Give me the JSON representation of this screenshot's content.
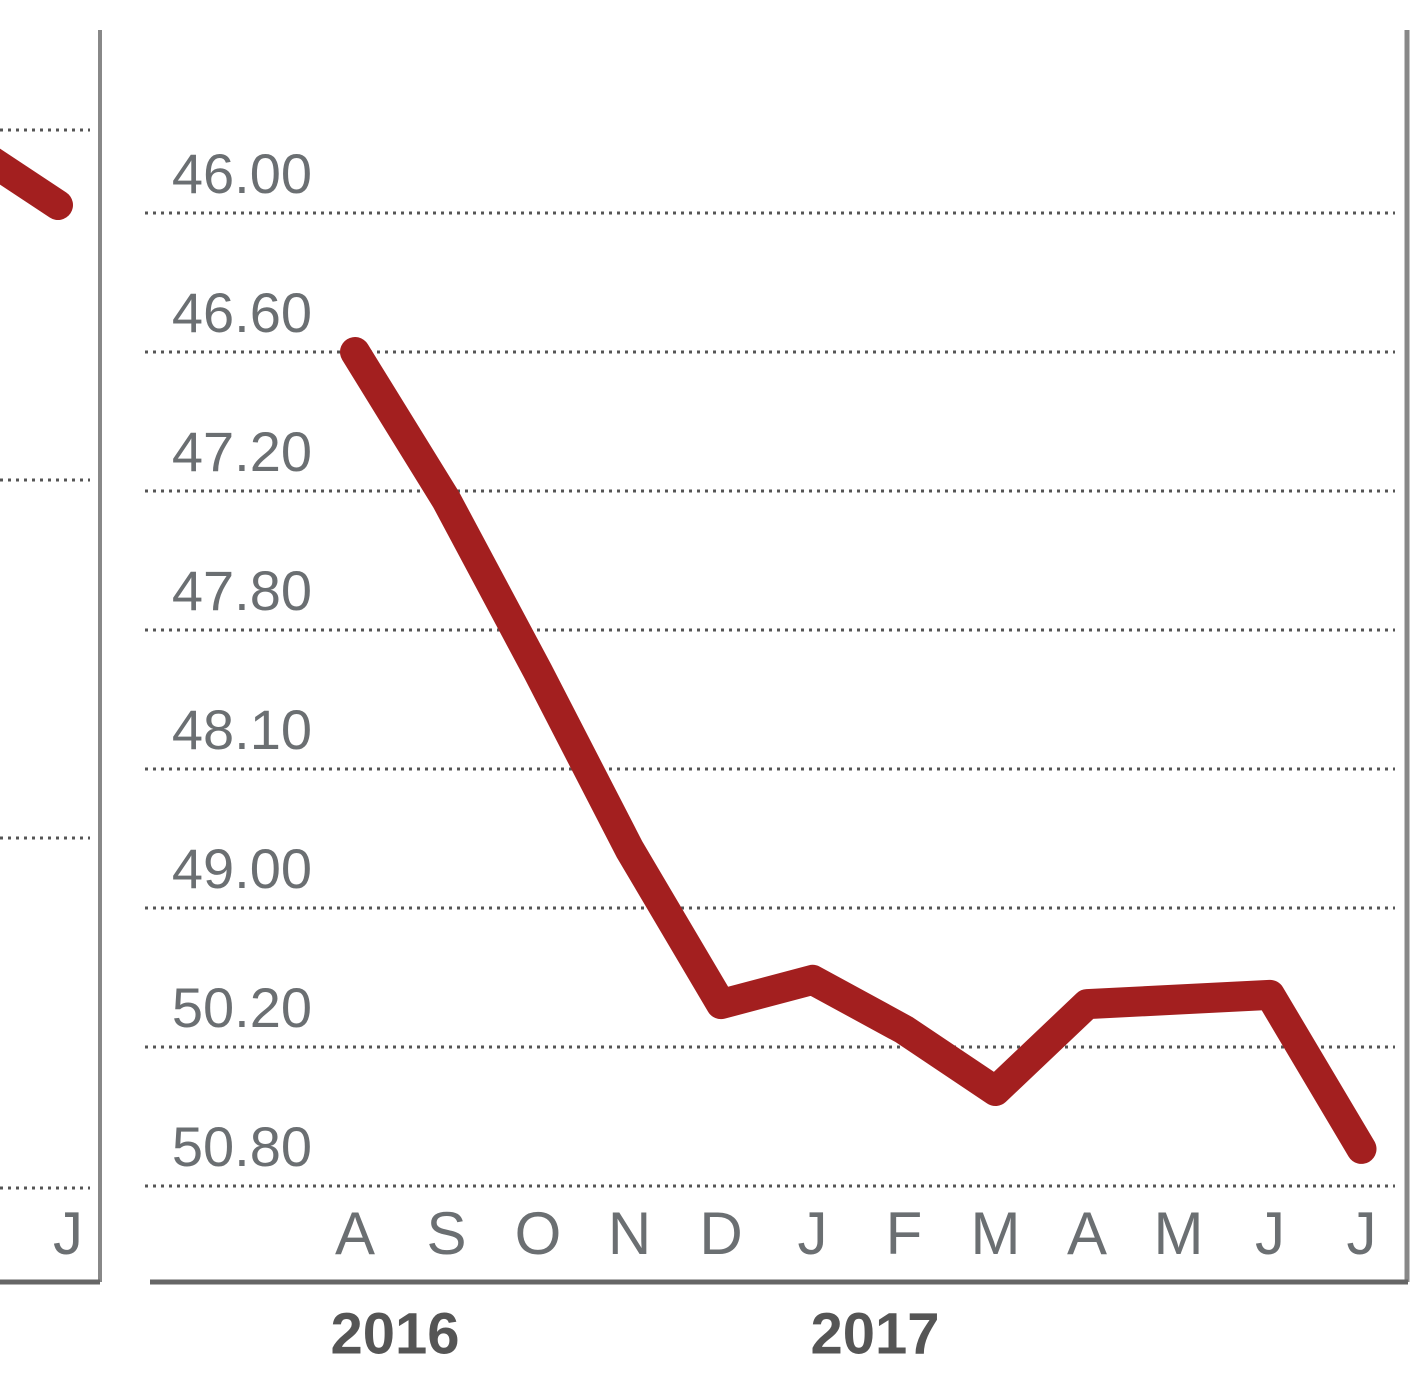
{
  "chart_data": {
    "type": "line",
    "categories": [
      "A",
      "S",
      "O",
      "N",
      "D",
      "J",
      "F",
      "M",
      "A",
      "M",
      "J",
      "J"
    ],
    "years": [
      "2016",
      "2017"
    ],
    "series": [
      {
        "color": "#a31f1f",
        "values": [
          46.6,
          47.24,
          47.89,
          48.62,
          49.83,
          49.62,
          50.05,
          50.39,
          49.83,
          49.79,
          49.75,
          50.64
        ]
      }
    ],
    "y_inverted": true,
    "ylim": [
      46,
      50.8
    ],
    "yticks": [
      {
        "value": 46,
        "label": "46.00"
      },
      {
        "value": 46.6,
        "label": "46.60"
      },
      {
        "value": 47.2,
        "label": "47.20"
      },
      {
        "value": 47.8,
        "label": "47.80"
      },
      {
        "value": 48.1,
        "label": "48.10"
      },
      {
        "value": 49,
        "label": "49.00"
      },
      {
        "value": 50.2,
        "label": "50.20"
      },
      {
        "value": 50.8,
        "label": "50.80"
      }
    ],
    "grid": true
  },
  "partial_panel": {
    "x_label": "J"
  }
}
